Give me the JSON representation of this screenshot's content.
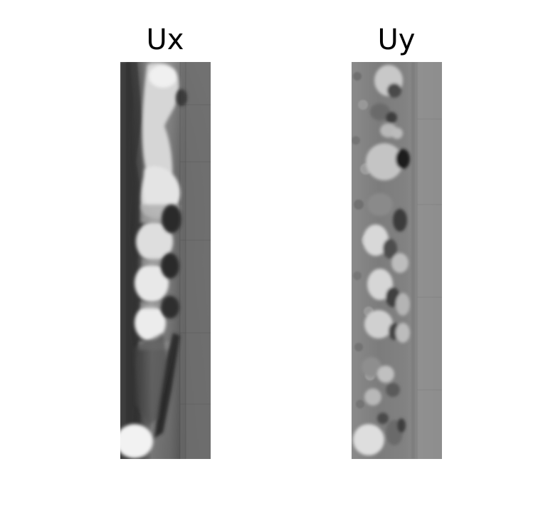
{
  "panels": [
    {
      "title": "Ux",
      "colormap": "grayscale"
    },
    {
      "title": "Uy",
      "colormap": "grayscale"
    }
  ],
  "colors": {
    "background": "#ffffff",
    "text": "#000000"
  }
}
